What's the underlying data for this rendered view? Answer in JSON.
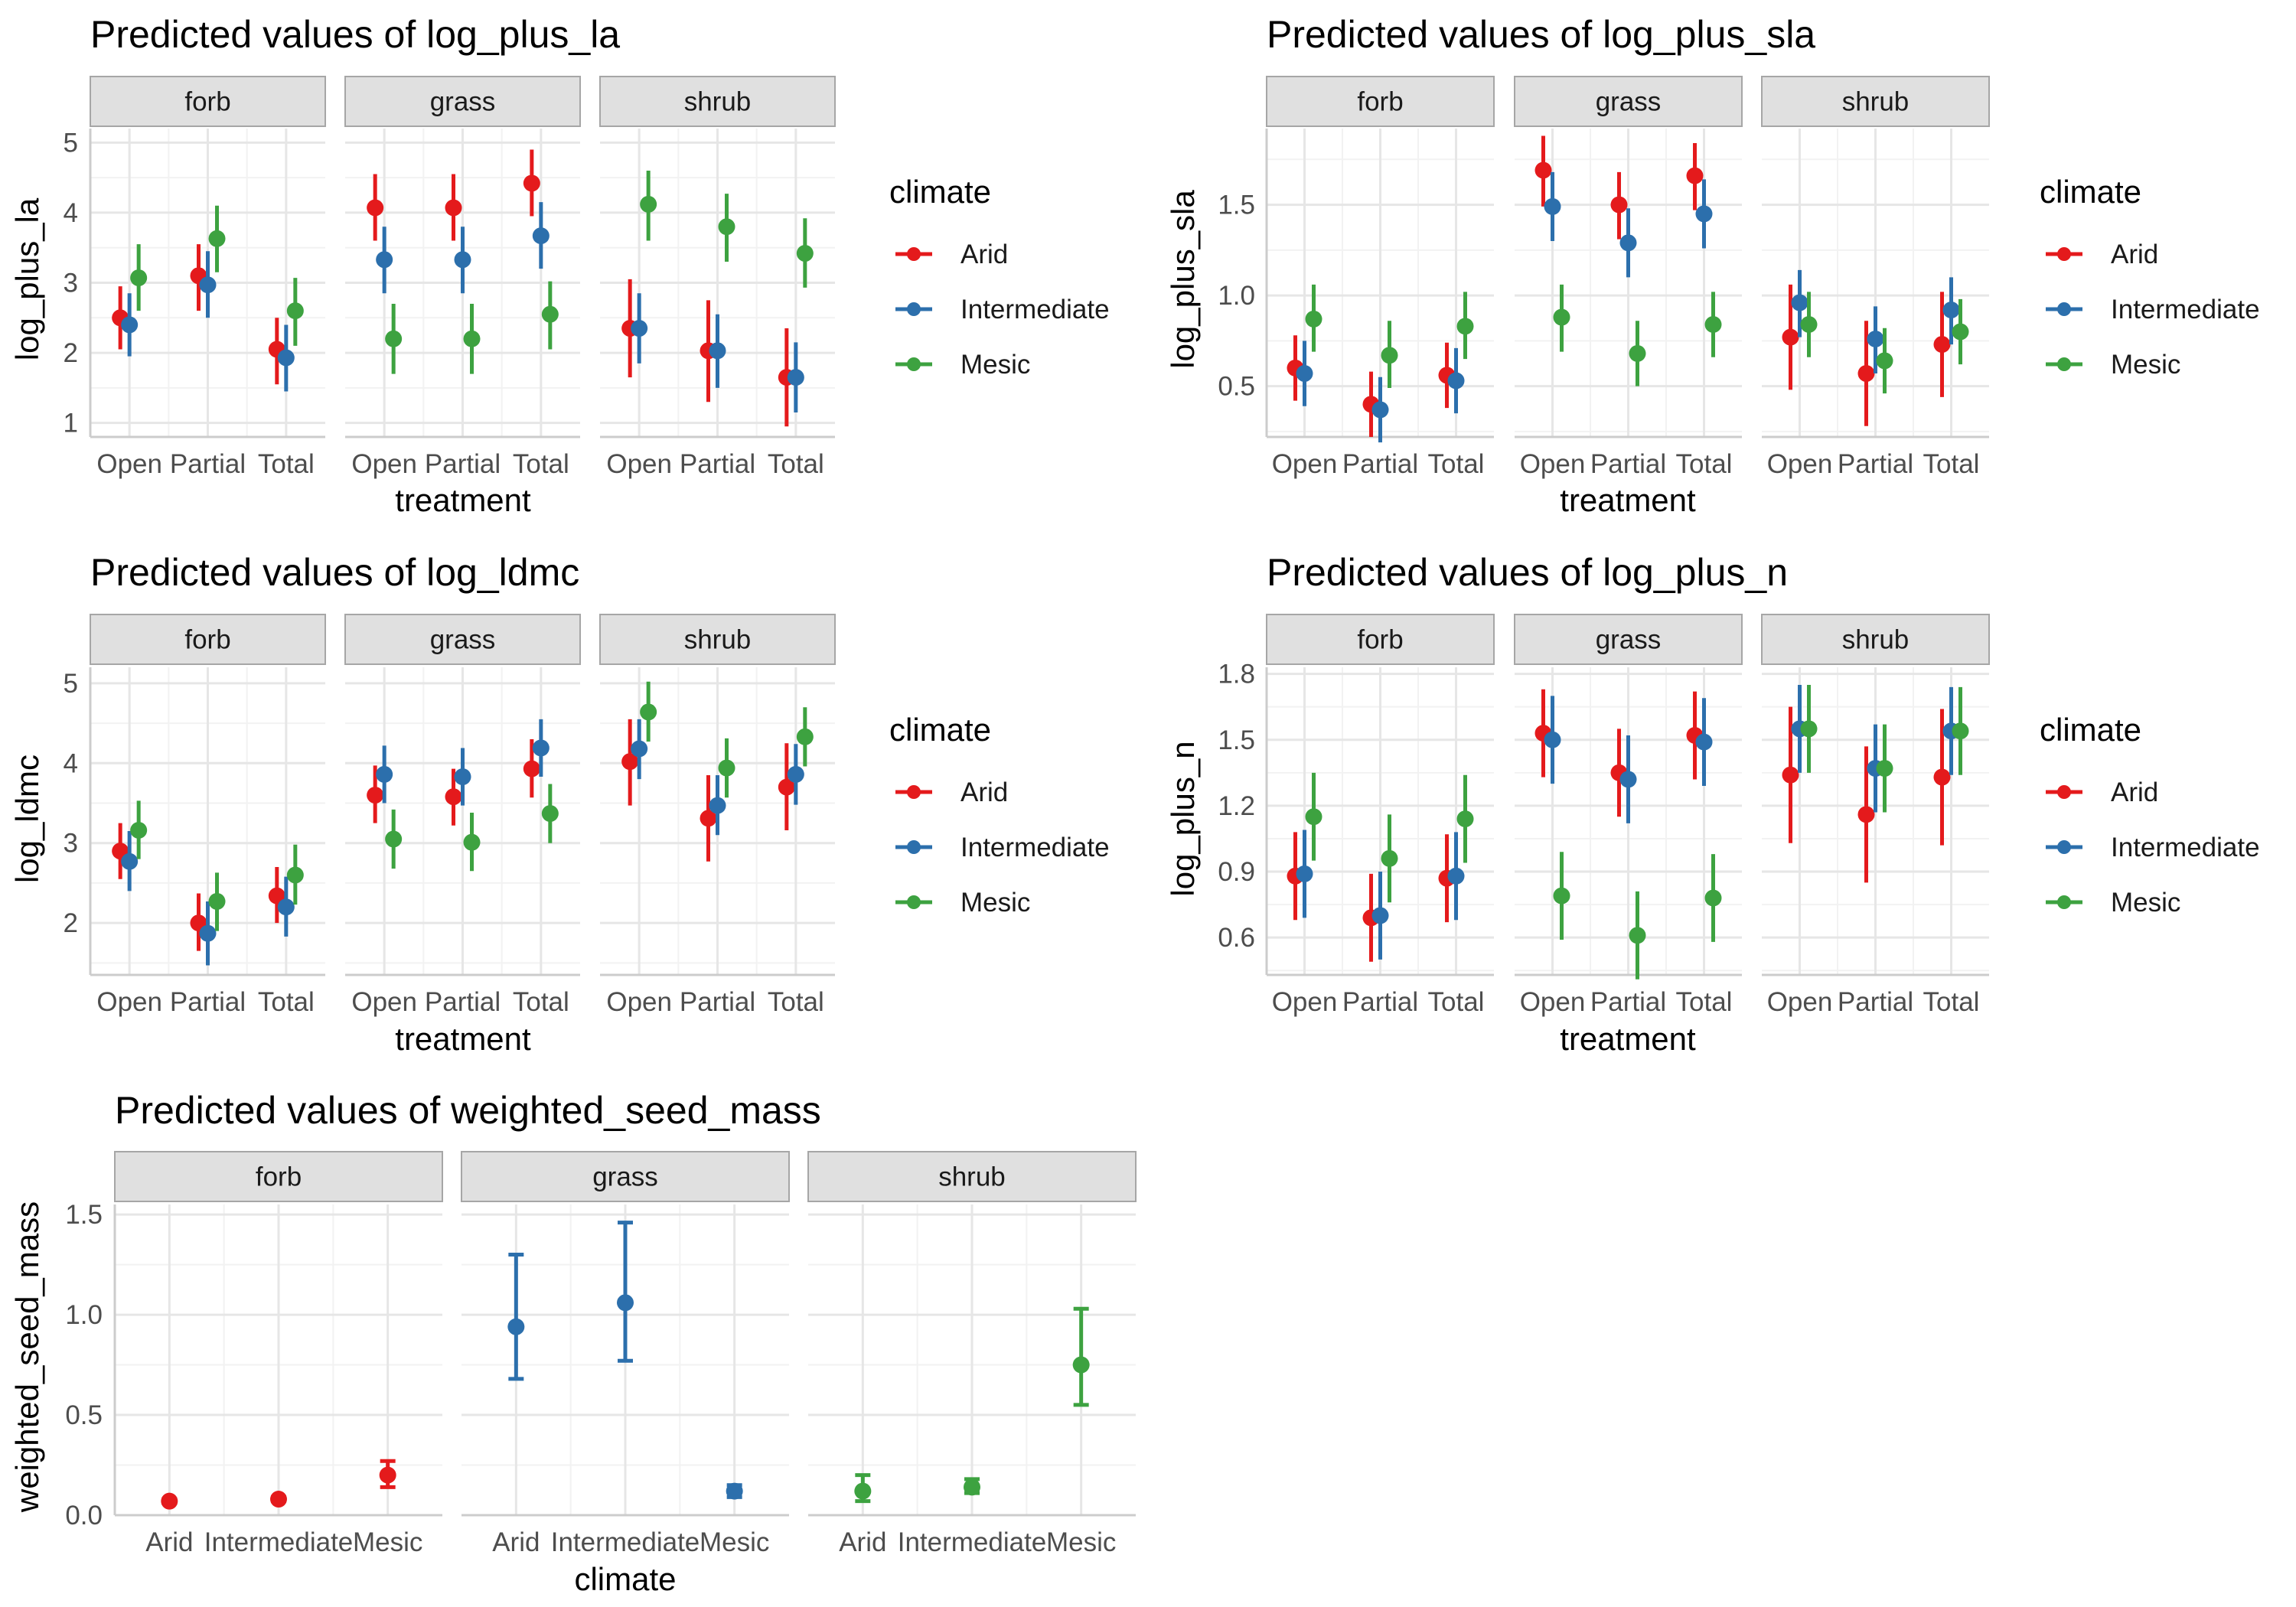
{
  "colors": {
    "Arid": "#E41A1C",
    "Intermediate": "#2C6FAC",
    "Mesic": "#3DA240",
    "strip_fill": "#e0e0e0",
    "strip_border": "#a6a6a6",
    "grid_major": "#e6e6e6",
    "grid_minor": "#f2f2f2"
  },
  "legend": {
    "title": "climate",
    "items": [
      "Arid",
      "Intermediate",
      "Mesic"
    ]
  },
  "chart_data": [
    {
      "type": "errorbar",
      "title": "Predicted values of log_plus_la",
      "xlabel": "treatment",
      "ylabel": "log_plus_la",
      "ylim": [
        0.8,
        5.2
      ],
      "yticks": [
        1,
        2,
        3,
        4,
        5
      ],
      "yminor": [
        1.5,
        2.5,
        3.5,
        4.5
      ],
      "panels": [
        "forb",
        "grass",
        "shrub"
      ],
      "categories": [
        "Open",
        "Partial",
        "Total"
      ],
      "series": [
        {
          "name": "Arid",
          "values": {
            "forb": [
              [
                2.5,
                2.05,
                2.95
              ],
              [
                3.1,
                2.6,
                3.55
              ],
              [
                2.05,
                1.55,
                2.5
              ]
            ],
            "grass": [
              [
                4.07,
                3.6,
                4.55
              ],
              [
                4.07,
                3.6,
                4.55
              ],
              [
                4.42,
                3.95,
                4.9
              ]
            ],
            "shrub": [
              [
                2.35,
                1.65,
                3.05
              ],
              [
                2.03,
                1.3,
                2.75
              ],
              [
                1.65,
                0.95,
                2.35
              ]
            ]
          }
        },
        {
          "name": "Intermediate",
          "values": {
            "forb": [
              [
                2.4,
                1.95,
                2.85
              ],
              [
                2.97,
                2.5,
                3.45
              ],
              [
                1.93,
                1.45,
                2.4
              ]
            ],
            "grass": [
              [
                3.33,
                2.85,
                3.8
              ],
              [
                3.33,
                2.85,
                3.8
              ],
              [
                3.67,
                3.2,
                4.15
              ]
            ],
            "shrub": [
              [
                2.35,
                1.85,
                2.85
              ],
              [
                2.03,
                1.5,
                2.55
              ],
              [
                1.65,
                1.15,
                2.15
              ]
            ]
          }
        },
        {
          "name": "Mesic",
          "values": {
            "forb": [
              [
                3.07,
                2.6,
                3.55
              ],
              [
                3.63,
                3.15,
                4.1
              ],
              [
                2.6,
                2.1,
                3.07
              ]
            ],
            "grass": [
              [
                2.2,
                1.7,
                2.7
              ],
              [
                2.2,
                1.7,
                2.7
              ],
              [
                2.55,
                2.05,
                3.02
              ]
            ],
            "shrub": [
              [
                4.12,
                3.6,
                4.6
              ],
              [
                3.8,
                3.3,
                4.27
              ],
              [
                3.42,
                2.93,
                3.92
              ]
            ]
          }
        }
      ]
    },
    {
      "type": "errorbar",
      "title": "Predicted values of log_plus_sla",
      "xlabel": "treatment",
      "ylabel": "log_plus_sla",
      "ylim": [
        0.22,
        1.92
      ],
      "yticks": [
        0.5,
        1.0,
        1.5
      ],
      "yminor": [
        0.25,
        0.75,
        1.25,
        1.75
      ],
      "panels": [
        "forb",
        "grass",
        "shrub"
      ],
      "categories": [
        "Open",
        "Partial",
        "Total"
      ],
      "series": [
        {
          "name": "Arid",
          "values": {
            "forb": [
              [
                0.6,
                0.42,
                0.78
              ],
              [
                0.4,
                0.22,
                0.58
              ],
              [
                0.56,
                0.38,
                0.74
              ]
            ],
            "grass": [
              [
                1.69,
                1.49,
                1.88
              ],
              [
                1.5,
                1.31,
                1.68
              ],
              [
                1.66,
                1.47,
                1.84
              ]
            ],
            "shrub": [
              [
                0.77,
                0.48,
                1.06
              ],
              [
                0.57,
                0.28,
                0.86
              ],
              [
                0.73,
                0.44,
                1.02
              ]
            ]
          }
        },
        {
          "name": "Intermediate",
          "values": {
            "forb": [
              [
                0.57,
                0.39,
                0.75
              ],
              [
                0.37,
                0.19,
                0.55
              ],
              [
                0.53,
                0.35,
                0.71
              ]
            ],
            "grass": [
              [
                1.49,
                1.3,
                1.68
              ],
              [
                1.29,
                1.1,
                1.48
              ],
              [
                1.45,
                1.26,
                1.64
              ]
            ],
            "shrub": [
              [
                0.96,
                0.77,
                1.14
              ],
              [
                0.76,
                0.57,
                0.94
              ],
              [
                0.92,
                0.73,
                1.1
              ]
            ]
          }
        },
        {
          "name": "Mesic",
          "values": {
            "forb": [
              [
                0.87,
                0.69,
                1.06
              ],
              [
                0.67,
                0.49,
                0.86
              ],
              [
                0.83,
                0.65,
                1.02
              ]
            ],
            "grass": [
              [
                0.88,
                0.69,
                1.06
              ],
              [
                0.68,
                0.5,
                0.86
              ],
              [
                0.84,
                0.66,
                1.02
              ]
            ],
            "shrub": [
              [
                0.84,
                0.66,
                1.02
              ],
              [
                0.64,
                0.46,
                0.82
              ],
              [
                0.8,
                0.62,
                0.98
              ]
            ]
          }
        }
      ]
    },
    {
      "type": "errorbar",
      "title": "Predicted values of log_ldmc",
      "xlabel": "treatment",
      "ylabel": "log_ldmc",
      "ylim": [
        1.35,
        5.2
      ],
      "yticks": [
        2,
        3,
        4,
        5
      ],
      "yminor": [
        1.5,
        2.5,
        3.5,
        4.5
      ],
      "panels": [
        "forb",
        "grass",
        "shrub"
      ],
      "categories": [
        "Open",
        "Partial",
        "Total"
      ],
      "series": [
        {
          "name": "Arid",
          "values": {
            "forb": [
              [
                2.9,
                2.55,
                3.25
              ],
              [
                2.0,
                1.65,
                2.37
              ],
              [
                2.34,
                2.0,
                2.7
              ]
            ],
            "grass": [
              [
                3.6,
                3.25,
                3.97
              ],
              [
                3.58,
                3.22,
                3.93
              ],
              [
                3.93,
                3.57,
                4.3
              ]
            ],
            "shrub": [
              [
                4.02,
                3.47,
                4.55
              ],
              [
                3.31,
                2.77,
                3.85
              ],
              [
                3.7,
                3.16,
                4.25
              ]
            ]
          }
        },
        {
          "name": "Intermediate",
          "values": {
            "forb": [
              [
                2.77,
                2.4,
                3.15
              ],
              [
                1.87,
                1.47,
                2.27
              ],
              [
                2.2,
                1.83,
                2.58
              ]
            ],
            "grass": [
              [
                3.86,
                3.5,
                4.22
              ],
              [
                3.83,
                3.47,
                4.19
              ],
              [
                4.19,
                3.83,
                4.55
              ]
            ],
            "shrub": [
              [
                4.18,
                3.8,
                4.55
              ],
              [
                3.47,
                3.1,
                3.85
              ],
              [
                3.86,
                3.48,
                4.24
              ]
            ]
          }
        },
        {
          "name": "Mesic",
          "values": {
            "forb": [
              [
                3.16,
                2.8,
                3.53
              ],
              [
                2.27,
                1.9,
                2.63
              ],
              [
                2.6,
                2.23,
                2.98
              ]
            ],
            "grass": [
              [
                3.05,
                2.68,
                3.42
              ],
              [
                3.01,
                2.65,
                3.38
              ],
              [
                3.37,
                3.0,
                3.74
              ]
            ],
            "shrub": [
              [
                4.64,
                4.27,
                5.02
              ],
              [
                3.94,
                3.57,
                4.31
              ],
              [
                4.33,
                3.96,
                4.7
              ]
            ]
          }
        }
      ]
    },
    {
      "type": "errorbar",
      "title": "Predicted values of log_plus_n",
      "xlabel": "treatment",
      "ylabel": "log_plus_n",
      "ylim": [
        0.43,
        1.83
      ],
      "yticks": [
        0.6,
        0.9,
        1.2,
        1.5,
        1.8
      ],
      "yminor": [
        0.45,
        0.75,
        1.05,
        1.35,
        1.65
      ],
      "panels": [
        "forb",
        "grass",
        "shrub"
      ],
      "categories": [
        "Open",
        "Partial",
        "Total"
      ],
      "series": [
        {
          "name": "Arid",
          "values": {
            "forb": [
              [
                0.88,
                0.68,
                1.08
              ],
              [
                0.69,
                0.49,
                0.89
              ],
              [
                0.87,
                0.67,
                1.07
              ]
            ],
            "grass": [
              [
                1.53,
                1.33,
                1.73
              ],
              [
                1.35,
                1.15,
                1.55
              ],
              [
                1.52,
                1.32,
                1.72
              ]
            ],
            "shrub": [
              [
                1.34,
                1.03,
                1.65
              ],
              [
                1.16,
                0.85,
                1.47
              ],
              [
                1.33,
                1.02,
                1.64
              ]
            ]
          }
        },
        {
          "name": "Intermediate",
          "values": {
            "forb": [
              [
                0.89,
                0.69,
                1.09
              ],
              [
                0.7,
                0.5,
                0.9
              ],
              [
                0.88,
                0.68,
                1.08
              ]
            ],
            "grass": [
              [
                1.5,
                1.3,
                1.7
              ],
              [
                1.32,
                1.12,
                1.52
              ],
              [
                1.49,
                1.29,
                1.69
              ]
            ],
            "shrub": [
              [
                1.55,
                1.35,
                1.75
              ],
              [
                1.37,
                1.17,
                1.57
              ],
              [
                1.54,
                1.34,
                1.74
              ]
            ]
          }
        },
        {
          "name": "Mesic",
          "values": {
            "forb": [
              [
                1.15,
                0.95,
                1.35
              ],
              [
                0.96,
                0.76,
                1.16
              ],
              [
                1.14,
                0.94,
                1.34
              ]
            ],
            "grass": [
              [
                0.79,
                0.59,
                0.99
              ],
              [
                0.61,
                0.41,
                0.81
              ],
              [
                0.78,
                0.58,
                0.98
              ]
            ],
            "shrub": [
              [
                1.55,
                1.35,
                1.75
              ],
              [
                1.37,
                1.17,
                1.57
              ],
              [
                1.54,
                1.34,
                1.74
              ]
            ]
          }
        }
      ]
    },
    {
      "type": "errorbar",
      "title": "Predicted values of weighted_seed_mass",
      "xlabel": "climate",
      "ylabel": "weighted_seed_mass",
      "ylim": [
        0,
        1.55
      ],
      "yticks": [
        0.0,
        0.5,
        1.0,
        1.5
      ],
      "yminor": [
        0.25,
        0.75,
        1.25
      ],
      "panels": [
        "forb",
        "grass",
        "shrub"
      ],
      "categories": [
        "Arid",
        "Intermediate",
        "Mesic"
      ],
      "panel_colors": {
        "forb": "Arid",
        "grass": "Intermediate",
        "shrub": "Mesic"
      },
      "values": {
        "forb": [
          [
            0.07,
            0.06,
            0.08
          ],
          [
            0.08,
            0.07,
            0.09
          ],
          [
            0.2,
            0.14,
            0.27
          ]
        ],
        "grass": [
          [
            0.94,
            0.68,
            1.3
          ],
          [
            1.06,
            0.77,
            1.46
          ],
          [
            0.12,
            0.09,
            0.15
          ]
        ],
        "shrub": [
          [
            0.12,
            0.07,
            0.2
          ],
          [
            0.14,
            0.11,
            0.18
          ],
          [
            0.75,
            0.55,
            1.03
          ]
        ]
      }
    }
  ]
}
